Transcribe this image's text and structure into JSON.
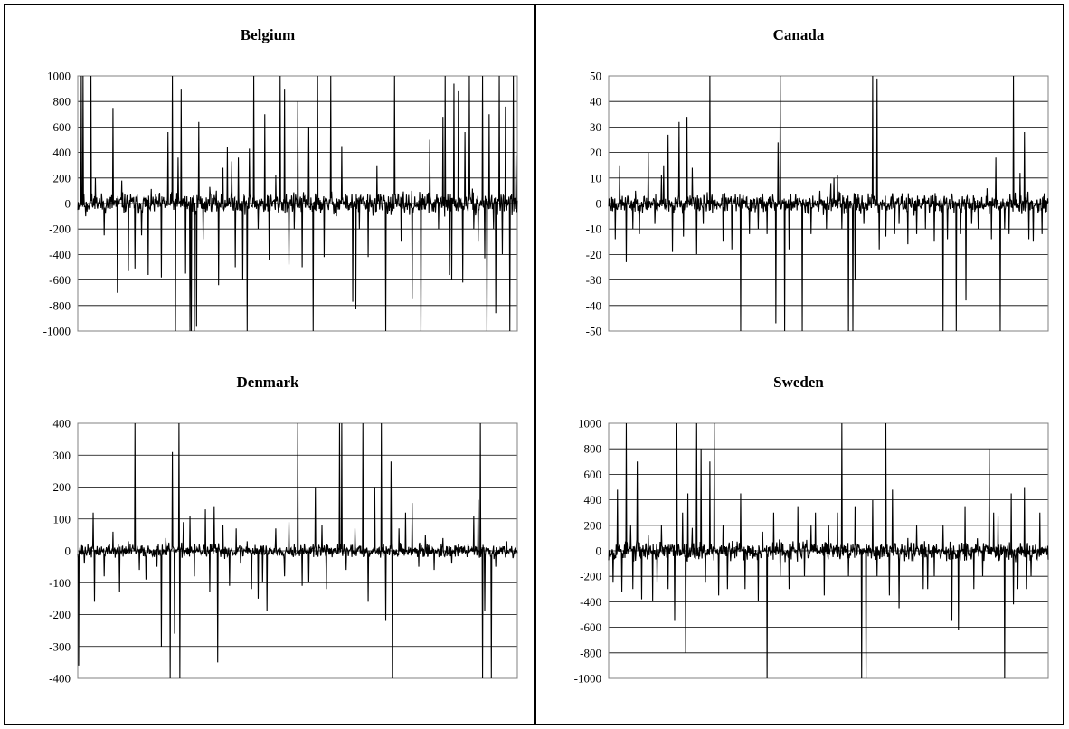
{
  "chart_data": [
    {
      "type": "line",
      "title": "Belgium",
      "ylim": [
        -1000,
        1000
      ],
      "yticks": [
        "1000",
        "800",
        "600",
        "400",
        "200",
        "0",
        "-200",
        "-400",
        "-600",
        "-800",
        "-1000"
      ],
      "grid": "horizontal",
      "n_points": 1000,
      "seed": 11,
      "noise": 40,
      "spikes": [
        [
          8,
          1000
        ],
        [
          12,
          1000
        ],
        [
          18,
          -100
        ],
        [
          30,
          1000
        ],
        [
          40,
          200
        ],
        [
          60,
          -250
        ],
        [
          80,
          750
        ],
        [
          90,
          -700
        ],
        [
          100,
          180
        ],
        [
          115,
          -530
        ],
        [
          130,
          -510
        ],
        [
          145,
          -250
        ],
        [
          160,
          -560
        ],
        [
          190,
          -580
        ],
        [
          205,
          560
        ],
        [
          215,
          1000
        ],
        [
          222,
          -1000
        ],
        [
          228,
          360
        ],
        [
          235,
          900
        ],
        [
          245,
          -550
        ],
        [
          255,
          -1000
        ],
        [
          258,
          -1000
        ],
        [
          265,
          -1000
        ],
        [
          270,
          -960
        ],
        [
          275,
          640
        ],
        [
          285,
          -280
        ],
        [
          300,
          130
        ],
        [
          320,
          -640
        ],
        [
          330,
          280
        ],
        [
          340,
          440
        ],
        [
          350,
          330
        ],
        [
          358,
          -500
        ],
        [
          365,
          360
        ],
        [
          375,
          -600
        ],
        [
          385,
          -1000
        ],
        [
          390,
          430
        ],
        [
          400,
          1000
        ],
        [
          410,
          -200
        ],
        [
          425,
          700
        ],
        [
          435,
          -440
        ],
        [
          450,
          220
        ],
        [
          460,
          1000
        ],
        [
          470,
          900
        ],
        [
          480,
          -480
        ],
        [
          492,
          -200
        ],
        [
          500,
          800
        ],
        [
          510,
          -500
        ],
        [
          525,
          600
        ],
        [
          535,
          -1000
        ],
        [
          545,
          1000
        ],
        [
          560,
          -420
        ],
        [
          575,
          1000
        ],
        [
          588,
          -100
        ],
        [
          600,
          450
        ],
        [
          625,
          -770
        ],
        [
          632,
          -830
        ],
        [
          640,
          -200
        ],
        [
          660,
          -420
        ],
        [
          680,
          300
        ],
        [
          700,
          -1000
        ],
        [
          720,
          1000
        ],
        [
          735,
          -300
        ],
        [
          760,
          -750
        ],
        [
          780,
          -1000
        ],
        [
          800,
          500
        ],
        [
          820,
          -200
        ],
        [
          830,
          680
        ],
        [
          835,
          1000
        ],
        [
          845,
          -560
        ],
        [
          850,
          -600
        ],
        [
          855,
          940
        ],
        [
          865,
          880
        ],
        [
          875,
          -620
        ],
        [
          880,
          560
        ],
        [
          890,
          1000
        ],
        [
          900,
          -200
        ],
        [
          910,
          -300
        ],
        [
          920,
          1000
        ],
        [
          925,
          -430
        ],
        [
          930,
          -1000
        ],
        [
          935,
          700
        ],
        [
          945,
          -200
        ],
        [
          950,
          -860
        ],
        [
          958,
          1000
        ],
        [
          965,
          -400
        ],
        [
          972,
          760
        ],
        [
          982,
          -1000
        ],
        [
          990,
          1000
        ],
        [
          996,
          380
        ]
      ]
    },
    {
      "type": "line",
      "title": "Canada",
      "ylim": [
        -50,
        50
      ],
      "yticks": [
        "50",
        "40",
        "30",
        "20",
        "10",
        "0",
        "-10",
        "-20",
        "-30",
        "-40",
        "-50"
      ],
      "grid": "horizontal",
      "n_points": 1000,
      "seed": 23,
      "noise": 1.8,
      "spikes": [
        [
          15,
          -14
        ],
        [
          25,
          15
        ],
        [
          40,
          -23
        ],
        [
          55,
          -10
        ],
        [
          70,
          -12
        ],
        [
          90,
          20
        ],
        [
          105,
          -8
        ],
        [
          120,
          11
        ],
        [
          125,
          15
        ],
        [
          135,
          27
        ],
        [
          145,
          -19
        ],
        [
          160,
          32
        ],
        [
          170,
          -13
        ],
        [
          178,
          34
        ],
        [
          190,
          14
        ],
        [
          200,
          -20
        ],
        [
          215,
          -8
        ],
        [
          230,
          50
        ],
        [
          260,
          -15
        ],
        [
          280,
          -18
        ],
        [
          300,
          -50
        ],
        [
          320,
          -12
        ],
        [
          340,
          -10
        ],
        [
          360,
          -12
        ],
        [
          380,
          -47
        ],
        [
          385,
          24
        ],
        [
          390,
          50
        ],
        [
          400,
          -50
        ],
        [
          410,
          -18
        ],
        [
          440,
          -50
        ],
        [
          460,
          -12
        ],
        [
          480,
          5
        ],
        [
          495,
          -10
        ],
        [
          505,
          8
        ],
        [
          512,
          10
        ],
        [
          520,
          11
        ],
        [
          530,
          -10
        ],
        [
          545,
          -50
        ],
        [
          555,
          -50
        ],
        [
          560,
          -30
        ],
        [
          580,
          -8
        ],
        [
          590,
          4
        ],
        [
          600,
          50
        ],
        [
          610,
          49
        ],
        [
          615,
          -18
        ],
        [
          630,
          -13
        ],
        [
          650,
          -12
        ],
        [
          660,
          -8
        ],
        [
          680,
          -16
        ],
        [
          700,
          -12
        ],
        [
          720,
          -10
        ],
        [
          740,
          -15
        ],
        [
          760,
          -50
        ],
        [
          770,
          -14
        ],
        [
          790,
          -50
        ],
        [
          800,
          -12
        ],
        [
          812,
          -38
        ],
        [
          825,
          -8
        ],
        [
          840,
          -10
        ],
        [
          860,
          6
        ],
        [
          870,
          -14
        ],
        [
          880,
          18
        ],
        [
          890,
          -50
        ],
        [
          900,
          -10
        ],
        [
          910,
          -12
        ],
        [
          920,
          50
        ],
        [
          935,
          12
        ],
        [
          945,
          28
        ],
        [
          955,
          -14
        ],
        [
          965,
          -15
        ],
        [
          985,
          -12
        ]
      ]
    },
    {
      "type": "line",
      "title": "Denmark",
      "ylim": [
        -400,
        400
      ],
      "yticks": [
        "400",
        "300",
        "200",
        "100",
        "0",
        "-100",
        "-200",
        "-300",
        "-400"
      ],
      "grid": "horizontal",
      "n_points": 1000,
      "seed": 37,
      "noise": 10,
      "spikes": [
        [
          2,
          -360
        ],
        [
          15,
          -40
        ],
        [
          35,
          120
        ],
        [
          38,
          -160
        ],
        [
          60,
          -80
        ],
        [
          80,
          60
        ],
        [
          95,
          -130
        ],
        [
          115,
          30
        ],
        [
          130,
          400
        ],
        [
          140,
          -60
        ],
        [
          155,
          -90
        ],
        [
          180,
          -50
        ],
        [
          190,
          -300
        ],
        [
          200,
          40
        ],
        [
          210,
          -400
        ],
        [
          215,
          310
        ],
        [
          220,
          -260
        ],
        [
          230,
          400
        ],
        [
          232,
          -400
        ],
        [
          240,
          90
        ],
        [
          255,
          110
        ],
        [
          265,
          -80
        ],
        [
          290,
          130
        ],
        [
          300,
          -130
        ],
        [
          310,
          140
        ],
        [
          318,
          -350
        ],
        [
          330,
          80
        ],
        [
          345,
          -110
        ],
        [
          360,
          70
        ],
        [
          370,
          -40
        ],
        [
          385,
          30
        ],
        [
          395,
          -120
        ],
        [
          410,
          -150
        ],
        [
          420,
          -100
        ],
        [
          430,
          -190
        ],
        [
          450,
          70
        ],
        [
          470,
          -80
        ],
        [
          480,
          90
        ],
        [
          500,
          400
        ],
        [
          510,
          -110
        ],
        [
          525,
          -100
        ],
        [
          540,
          200
        ],
        [
          555,
          80
        ],
        [
          565,
          -120
        ],
        [
          595,
          400
        ],
        [
          600,
          400
        ],
        [
          610,
          -60
        ],
        [
          630,
          70
        ],
        [
          648,
          400
        ],
        [
          660,
          -160
        ],
        [
          675,
          200
        ],
        [
          690,
          400
        ],
        [
          700,
          -220
        ],
        [
          712,
          280
        ],
        [
          715,
          -400
        ],
        [
          730,
          70
        ],
        [
          745,
          120
        ],
        [
          760,
          150
        ],
        [
          775,
          -50
        ],
        [
          790,
          50
        ],
        [
          810,
          -60
        ],
        [
          830,
          40
        ],
        [
          850,
          -40
        ],
        [
          900,
          110
        ],
        [
          910,
          160
        ],
        [
          915,
          400
        ],
        [
          920,
          -400
        ],
        [
          925,
          -190
        ],
        [
          940,
          -400
        ],
        [
          950,
          -50
        ],
        [
          975,
          30
        ]
      ]
    },
    {
      "type": "line",
      "title": "Sweden",
      "ylim": [
        -1000,
        1000
      ],
      "yticks": [
        "1000",
        "800",
        "600",
        "400",
        "200",
        "0",
        "-200",
        "-400",
        "-600",
        "-800",
        "-1000"
      ],
      "grid": "horizontal",
      "n_points": 1000,
      "seed": 53,
      "noise": 35,
      "spikes": [
        [
          10,
          -250
        ],
        [
          20,
          480
        ],
        [
          30,
          -320
        ],
        [
          40,
          1000
        ],
        [
          50,
          200
        ],
        [
          55,
          -300
        ],
        [
          65,
          700
        ],
        [
          75,
          -380
        ],
        [
          90,
          120
        ],
        [
          100,
          -400
        ],
        [
          110,
          -250
        ],
        [
          120,
          200
        ],
        [
          135,
          -300
        ],
        [
          150,
          -550
        ],
        [
          155,
          1000
        ],
        [
          168,
          300
        ],
        [
          175,
          -800
        ],
        [
          180,
          450
        ],
        [
          190,
          180
        ],
        [
          200,
          1000
        ],
        [
          210,
          800
        ],
        [
          220,
          -250
        ],
        [
          230,
          700
        ],
        [
          240,
          1000
        ],
        [
          250,
          -350
        ],
        [
          260,
          200
        ],
        [
          270,
          -300
        ],
        [
          300,
          450
        ],
        [
          310,
          -300
        ],
        [
          340,
          -400
        ],
        [
          350,
          150
        ],
        [
          360,
          -1000
        ],
        [
          375,
          300
        ],
        [
          390,
          -200
        ],
        [
          410,
          -300
        ],
        [
          430,
          350
        ],
        [
          445,
          -200
        ],
        [
          460,
          200
        ],
        [
          470,
          300
        ],
        [
          490,
          -350
        ],
        [
          500,
          200
        ],
        [
          520,
          300
        ],
        [
          530,
          1000
        ],
        [
          545,
          -200
        ],
        [
          560,
          350
        ],
        [
          575,
          -1000
        ],
        [
          585,
          -1000
        ],
        [
          600,
          400
        ],
        [
          610,
          -200
        ],
        [
          630,
          1000
        ],
        [
          638,
          -350
        ],
        [
          645,
          480
        ],
        [
          660,
          -450
        ],
        [
          680,
          100
        ],
        [
          700,
          200
        ],
        [
          715,
          -300
        ],
        [
          725,
          -300
        ],
        [
          740,
          -200
        ],
        [
          760,
          200
        ],
        [
          780,
          -550
        ],
        [
          795,
          -620
        ],
        [
          810,
          350
        ],
        [
          830,
          -300
        ],
        [
          850,
          -200
        ],
        [
          865,
          800
        ],
        [
          875,
          300
        ],
        [
          885,
          270
        ],
        [
          900,
          -1000
        ],
        [
          915,
          450
        ],
        [
          920,
          -420
        ],
        [
          930,
          -300
        ],
        [
          945,
          500
        ],
        [
          950,
          -300
        ],
        [
          960,
          -200
        ],
        [
          980,
          300
        ],
        [
          1000,
          1000
        ]
      ]
    }
  ]
}
